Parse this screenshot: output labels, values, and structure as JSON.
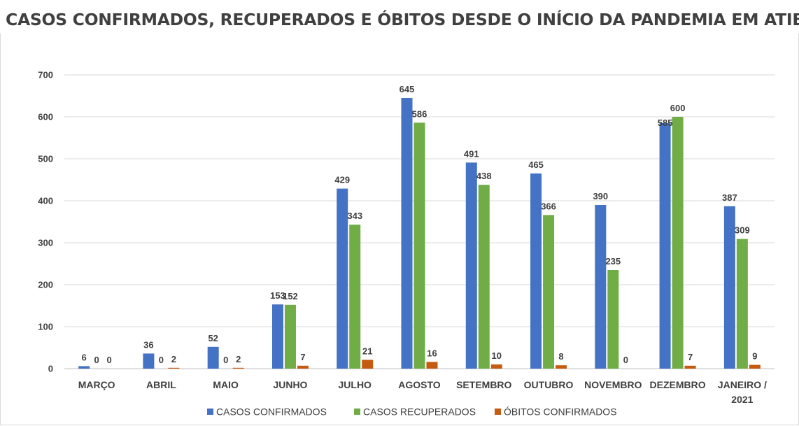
{
  "chart_data": {
    "type": "bar",
    "title": "CASOS CONFIRMADOS, RECUPERADOS E ÓBITOS DESDE O INÍCIO DA PANDEMIA EM ATIBAIA",
    "categories": [
      "MARÇO",
      "ABRIL",
      "MAIO",
      "JUNHO",
      "JULHO",
      "AGOSTO",
      "SETEMBRO",
      "OUTUBRO",
      "NOVEMBRO",
      "DEZEMBRO",
      "JANEIRO / 2021"
    ],
    "series": [
      {
        "name": "CASOS CONFIRMADOS",
        "color": "#4472c4",
        "values": [
          6,
          36,
          52,
          153,
          429,
          645,
          491,
          465,
          390,
          585,
          387
        ]
      },
      {
        "name": "CASOS RECUPERADOS",
        "color": "#70ad47",
        "values": [
          0,
          0,
          0,
          152,
          343,
          586,
          438,
          366,
          235,
          600,
          309
        ]
      },
      {
        "name": "ÓBITOS CONFIRMADOS",
        "color": "#c55a11",
        "values": [
          0,
          2,
          2,
          7,
          21,
          16,
          10,
          8,
          0,
          7,
          9
        ]
      }
    ],
    "ylim": [
      0,
      700
    ],
    "yticks": [
      0,
      100,
      200,
      300,
      400,
      500,
      600,
      700
    ],
    "grid": true,
    "legend": "bottom",
    "data_labels": true
  }
}
